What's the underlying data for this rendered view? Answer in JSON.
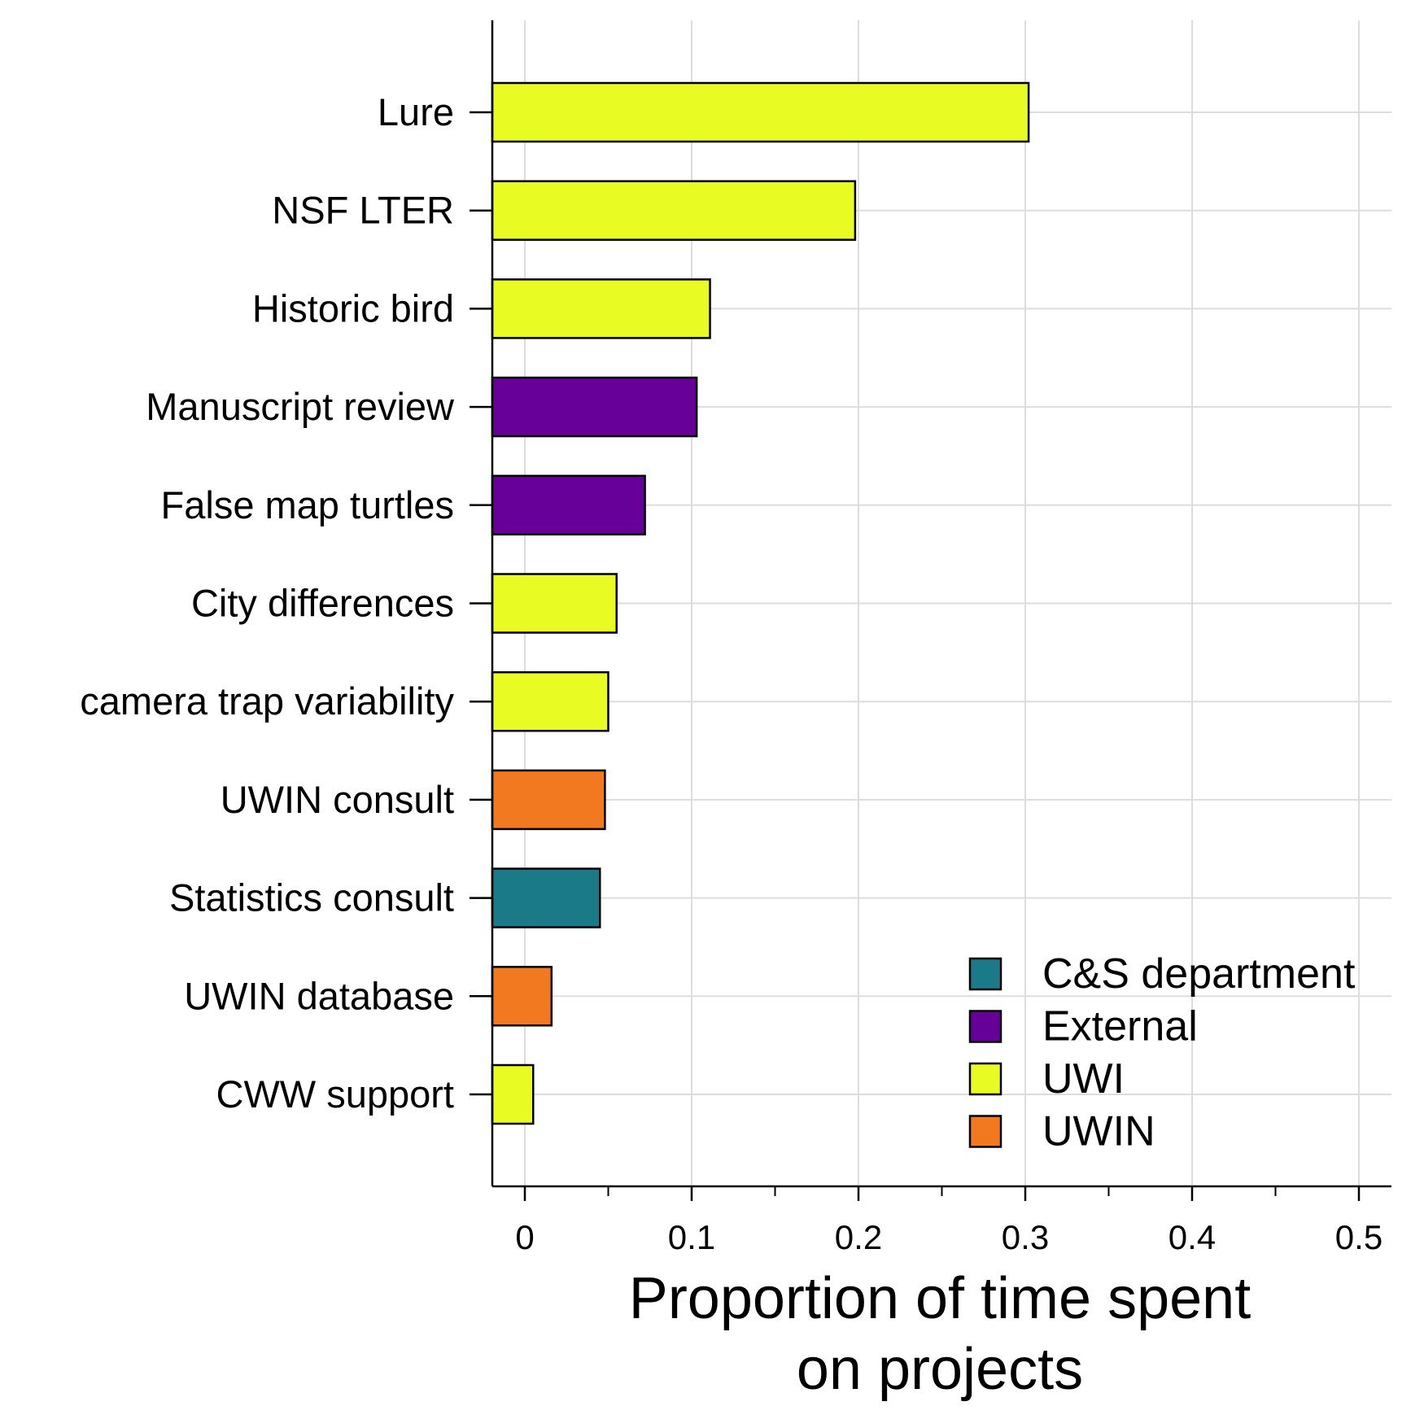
{
  "chart_data": {
    "type": "bar",
    "orientation": "horizontal",
    "categories": [
      "Lure",
      "NSF LTER",
      "Historic bird",
      "Manuscript review",
      "False map turtles",
      "City differences",
      "camera trap variability",
      "UWIN consult",
      "Statistics consult",
      "UWIN database",
      "CWW support"
    ],
    "values": [
      0.302,
      0.198,
      0.111,
      0.103,
      0.072,
      0.055,
      0.05,
      0.048,
      0.045,
      0.016,
      0.005
    ],
    "groups": [
      "UWI",
      "UWI",
      "UWI",
      "External",
      "External",
      "UWI",
      "UWI",
      "UWIN",
      "C&S department",
      "UWIN",
      "UWI"
    ],
    "legend": [
      {
        "name": "C&S department",
        "color": "#1b7a88"
      },
      {
        "name": "External",
        "color": "#660099"
      },
      {
        "name": "UWI",
        "color": "#e8fb22"
      },
      {
        "name": "UWIN",
        "color": "#f37920"
      }
    ],
    "legend_position": "bottom-right",
    "xlabel_lines": [
      "Proportion of time spent",
      "on projects"
    ],
    "ylabel": "",
    "xlim": [
      -0.02,
      0.52
    ],
    "xticks": [
      0,
      0.1,
      0.2,
      0.3,
      0.4,
      0.5
    ],
    "xtick_labels": [
      "0",
      "0.1",
      "0.2",
      "0.3",
      "0.4",
      "0.5"
    ],
    "grid": true,
    "bar_outline_color": "#000000",
    "grid_color": "#dddddd"
  }
}
